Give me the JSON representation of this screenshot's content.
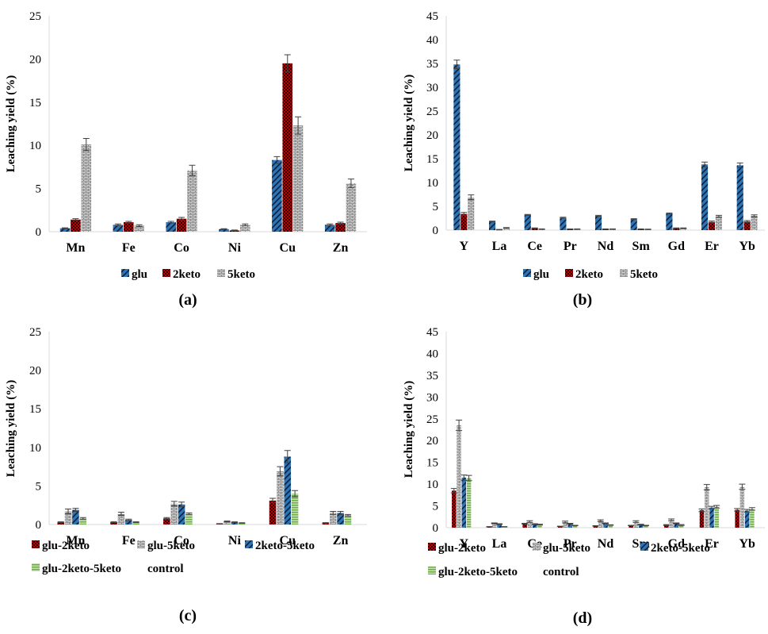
{
  "panels": [
    {
      "label": "(a)",
      "chart_data": {
        "type": "bar",
        "ylabel": "Leaching yield (%)",
        "ylim": [
          0,
          25
        ],
        "yticks": [
          0,
          5,
          10,
          15,
          20,
          25
        ],
        "grid": false,
        "categories": [
          "Mn",
          "Fe",
          "Co",
          "Ni",
          "Cu",
          "Zn"
        ],
        "series": [
          {
            "name": "glu",
            "color": "#2e75b6",
            "pattern": "diagonal-stripes",
            "values": [
              0.4,
              0.8,
              1.1,
              0.3,
              8.3,
              0.8
            ],
            "errors": [
              0.05,
              0.1,
              0.1,
              0.05,
              0.4,
              0.1
            ]
          },
          {
            "name": "2keto",
            "color": "#c00000",
            "pattern": "checker",
            "values": [
              1.4,
              1.1,
              1.5,
              0.15,
              19.5,
              1.0
            ],
            "errors": [
              0.1,
              0.1,
              0.15,
              0.05,
              1.0,
              0.1
            ]
          },
          {
            "name": "5keto",
            "color": "#8c8c8c",
            "pattern": "brick",
            "values": [
              10.1,
              0.7,
              7.1,
              0.8,
              12.3,
              5.6
            ],
            "errors": [
              0.7,
              0.1,
              0.6,
              0.1,
              1.0,
              0.5
            ]
          }
        ],
        "legend": "bottom"
      }
    },
    {
      "label": "(b)",
      "chart_data": {
        "type": "bar",
        "ylabel": "Leaching yield (%)",
        "ylim": [
          0,
          45
        ],
        "yticks": [
          0,
          5,
          10,
          15,
          20,
          25,
          30,
          35,
          40,
          45
        ],
        "grid": false,
        "categories": [
          "Y",
          "La",
          "Ce",
          "Pr",
          "Nd",
          "Sm",
          "Gd",
          "Er",
          "Yb"
        ],
        "series": [
          {
            "name": "glu",
            "color": "#2e75b6",
            "pattern": "diagonal-stripes",
            "values": [
              34.8,
              1.8,
              3.2,
              2.6,
              3.0,
              2.3,
              3.5,
              13.8,
              13.6
            ],
            "errors": [
              0.9,
              0.1,
              0.1,
              0.1,
              0.1,
              0.1,
              0.1,
              0.5,
              0.5
            ]
          },
          {
            "name": "2keto",
            "color": "#c00000",
            "pattern": "checker",
            "values": [
              3.4,
              0.1,
              0.4,
              0.2,
              0.2,
              0.2,
              0.4,
              1.7,
              1.8
            ],
            "errors": [
              0.3,
              0.05,
              0.05,
              0.05,
              0.05,
              0.05,
              0.05,
              0.2,
              0.2
            ]
          },
          {
            "name": "5keto",
            "color": "#8c8c8c",
            "pattern": "brick",
            "values": [
              6.9,
              0.5,
              0.2,
              0.2,
              0.2,
              0.15,
              0.4,
              2.9,
              3.0
            ],
            "errors": [
              0.5,
              0.05,
              0.05,
              0.05,
              0.05,
              0.05,
              0.05,
              0.2,
              0.2
            ]
          }
        ],
        "legend": "bottom"
      }
    },
    {
      "label": "(c)",
      "chart_data": {
        "type": "bar",
        "ylabel": "Leaching yield (%)",
        "ylim": [
          0,
          25
        ],
        "yticks": [
          0,
          5,
          10,
          15,
          20,
          25
        ],
        "grid": false,
        "categories": [
          "Mn",
          "Fe",
          "Co",
          "Ni",
          "Cu",
          "Zn"
        ],
        "series": [
          {
            "name": "glu-2keto",
            "color": "#c00000",
            "pattern": "checker",
            "values": [
              0.3,
              0.3,
              0.8,
              0.1,
              3.1,
              0.2
            ],
            "errors": [
              0.05,
              0.05,
              0.1,
              0.02,
              0.3,
              0.05
            ]
          },
          {
            "name": "glu-5keto",
            "color": "#8c8c8c",
            "pattern": "brick",
            "values": [
              1.7,
              1.4,
              2.7,
              0.4,
              6.9,
              1.5
            ],
            "errors": [
              0.3,
              0.2,
              0.3,
              0.05,
              0.6,
              0.2
            ]
          },
          {
            "name": "2keto-5keto",
            "color": "#2e75b6",
            "pattern": "diagonal-stripes",
            "values": [
              1.9,
              0.6,
              2.6,
              0.3,
              8.8,
              1.5
            ],
            "errors": [
              0.2,
              0.1,
              0.3,
              0.05,
              0.8,
              0.2
            ]
          },
          {
            "name": "glu-2keto-5keto",
            "color": "#70ad47",
            "pattern": "horizontal-stripes",
            "values": [
              0.8,
              0.3,
              1.4,
              0.2,
              4.0,
              1.2
            ],
            "errors": [
              0.1,
              0.05,
              0.1,
              0.03,
              0.4,
              0.1
            ]
          },
          {
            "name": "control",
            "color": "#ffc000",
            "pattern": "solid",
            "values": [
              0.0,
              0.0,
              0.0,
              0.0,
              0.0,
              0.0
            ],
            "errors": [
              0,
              0,
              0,
              0,
              0,
              0
            ]
          }
        ],
        "legend": "bottom"
      }
    },
    {
      "label": "(d)",
      "chart_data": {
        "type": "bar",
        "ylabel": "Leaching yield (%)",
        "ylim": [
          0,
          45
        ],
        "yticks": [
          0,
          5,
          10,
          15,
          20,
          25,
          30,
          35,
          40,
          45
        ],
        "grid": false,
        "categories": [
          "Y",
          "La",
          "Ce",
          "Pr",
          "Nd",
          "Sm",
          "Gd",
          "Er",
          "Yb"
        ],
        "series": [
          {
            "name": "glu-2keto",
            "color": "#c00000",
            "pattern": "checker",
            "values": [
              8.5,
              0.2,
              0.9,
              0.3,
              0.4,
              0.5,
              0.6,
              4.0,
              4.1
            ],
            "errors": [
              0.5,
              0.05,
              0.1,
              0.05,
              0.05,
              0.05,
              0.1,
              0.3,
              0.3
            ]
          },
          {
            "name": "glu-5keto",
            "color": "#8c8c8c",
            "pattern": "brick",
            "values": [
              23.5,
              1.0,
              1.4,
              1.3,
              1.6,
              1.4,
              1.8,
              9.3,
              9.4
            ],
            "errors": [
              1.2,
              0.1,
              0.2,
              0.2,
              0.2,
              0.2,
              0.2,
              0.6,
              0.6
            ]
          },
          {
            "name": "2keto-5keto",
            "color": "#2e75b6",
            "pattern": "diagonal-stripes",
            "values": [
              11.5,
              0.8,
              0.8,
              0.9,
              1.0,
              0.7,
              1.0,
              4.6,
              3.9
            ],
            "errors": [
              0.6,
              0.1,
              0.1,
              0.1,
              0.1,
              0.1,
              0.1,
              0.3,
              0.3
            ]
          },
          {
            "name": "glu-2keto-5keto",
            "color": "#70ad47",
            "pattern": "horizontal-stripes",
            "values": [
              11.4,
              0.2,
              0.7,
              0.5,
              0.6,
              0.5,
              0.6,
              4.8,
              4.3
            ],
            "errors": [
              0.6,
              0.05,
              0.1,
              0.05,
              0.05,
              0.05,
              0.1,
              0.3,
              0.3
            ]
          },
          {
            "name": "control",
            "color": "#ffc000",
            "pattern": "solid",
            "values": [
              0.05,
              0.0,
              0.0,
              0.0,
              0.0,
              0.0,
              0.0,
              0.0,
              0.0
            ],
            "errors": [
              0,
              0,
              0,
              0,
              0,
              0,
              0,
              0,
              0
            ]
          }
        ],
        "legend": "bottom"
      }
    }
  ]
}
